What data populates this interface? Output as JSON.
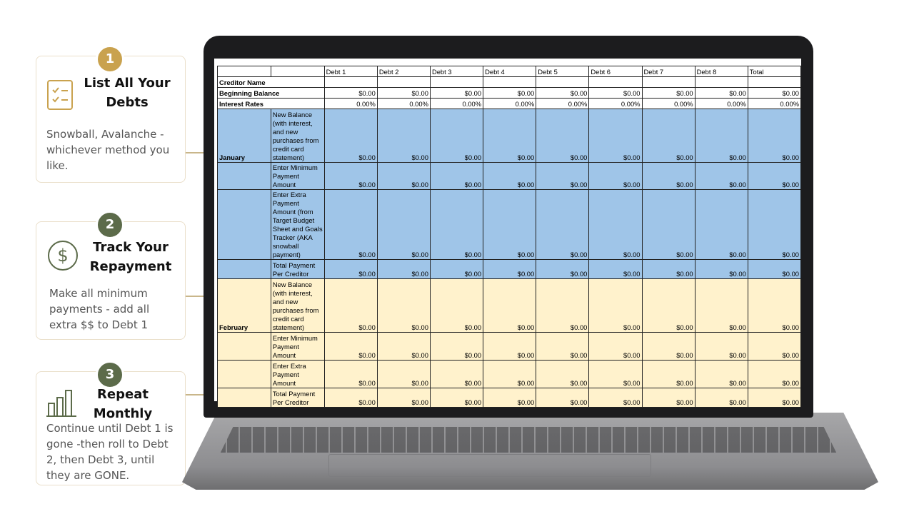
{
  "steps": [
    {
      "number": "1",
      "title": "List All Your Debts",
      "description": "Snowball, Avalanche - whichever method you like."
    },
    {
      "number": "2",
      "title": "Track Your Repayment",
      "description": "Make all minimum payments - add all extra $$ to Debt 1"
    },
    {
      "number": "3",
      "title": "Repeat Monthly",
      "description": "Continue until Debt 1 is gone -then roll to Debt 2, then Debt 3, until they are GONE."
    }
  ],
  "sheet": {
    "columns": [
      "Debt 1",
      "Debt 2",
      "Debt 3",
      "Debt 4",
      "Debt 5",
      "Debt 6",
      "Debt 7",
      "Debt 8",
      "Total"
    ],
    "rows": [
      {
        "label": "Creditor Name",
        "cells": []
      },
      {
        "label": "Beginning Balance",
        "cells": [
          "$0.00",
          "$0.00",
          "$0.00",
          "$0.00",
          "$0.00",
          "$0.00",
          "$0.00",
          "$0.00",
          "$0.00"
        ]
      },
      {
        "label": "Interest Rates",
        "cells": [
          "0.00%",
          "0.00%",
          "0.00%",
          "0.00%",
          "0.00%",
          "0.00%",
          "0.00%",
          "0.00%",
          "0.00%"
        ]
      }
    ],
    "months": [
      {
        "name": "January",
        "rows": [
          {
            "label": "New Balance (with interest, and new purchases from credit card statement)",
            "cells": [
              "$0.00",
              "$0.00",
              "$0.00",
              "$0.00",
              "$0.00",
              "$0.00",
              "$0.00",
              "$0.00",
              "$0.00"
            ]
          },
          {
            "label": "Enter Minimum Payment Amount",
            "cells": [
              "$0.00",
              "$0.00",
              "$0.00",
              "$0.00",
              "$0.00",
              "$0.00",
              "$0.00",
              "$0.00",
              "$0.00"
            ]
          },
          {
            "label": "Enter Extra Payment Amount (from Target Budget Sheet and Goals Tracker (AKA snowball payment)",
            "cells": [
              "$0.00",
              "$0.00",
              "$0.00",
              "$0.00",
              "$0.00",
              "$0.00",
              "$0.00",
              "$0.00",
              "$0.00"
            ]
          },
          {
            "label": "Total Payment Per Creditor",
            "cells": [
              "$0.00",
              "$0.00",
              "$0.00",
              "$0.00",
              "$0.00",
              "$0.00",
              "$0.00",
              "$0.00",
              "$0.00"
            ]
          }
        ]
      },
      {
        "name": "February",
        "rows": [
          {
            "label": "New Balance (with interest, and new purchases from credit card statement)",
            "cells": [
              "$0.00",
              "$0.00",
              "$0.00",
              "$0.00",
              "$0.00",
              "$0.00",
              "$0.00",
              "$0.00",
              "$0.00"
            ]
          },
          {
            "label": "Enter Minimum Payment Amount",
            "cells": [
              "$0.00",
              "$0.00",
              "$0.00",
              "$0.00",
              "$0.00",
              "$0.00",
              "$0.00",
              "$0.00",
              "$0.00"
            ]
          },
          {
            "label": "Enter Extra Payment Amount",
            "cells": [
              "$0.00",
              "$0.00",
              "$0.00",
              "$0.00",
              "$0.00",
              "$0.00",
              "$0.00",
              "$0.00",
              "$0.00"
            ]
          },
          {
            "label": "Total Payment Per Creditor",
            "cells": [
              "$0.00",
              "$0.00",
              "$0.00",
              "$0.00",
              "$0.00",
              "$0.00",
              "$0.00",
              "$0.00",
              "$0.00"
            ]
          }
        ]
      }
    ]
  }
}
